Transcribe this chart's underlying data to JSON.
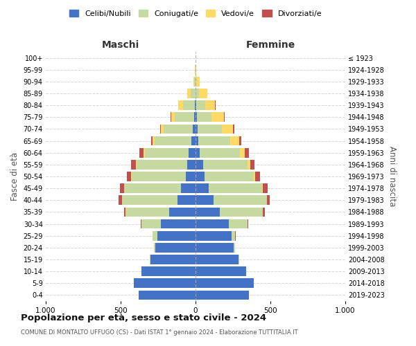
{
  "age_groups": [
    "0-4",
    "5-9",
    "10-14",
    "15-19",
    "20-24",
    "25-29",
    "30-34",
    "35-39",
    "40-44",
    "45-49",
    "50-54",
    "55-59",
    "60-64",
    "65-69",
    "70-74",
    "75-79",
    "80-84",
    "85-89",
    "90-94",
    "95-99",
    "100+"
  ],
  "birth_years": [
    "2019-2023",
    "2014-2018",
    "2009-2013",
    "2004-2008",
    "1999-2003",
    "1994-1998",
    "1989-1993",
    "1984-1988",
    "1979-1983",
    "1974-1978",
    "1969-1973",
    "1964-1968",
    "1959-1963",
    "1954-1958",
    "1949-1953",
    "1944-1948",
    "1939-1943",
    "1934-1938",
    "1929-1933",
    "1924-1928",
    "≤ 1923"
  ],
  "males": {
    "celibi": [
      380,
      410,
      360,
      300,
      270,
      255,
      230,
      175,
      120,
      95,
      65,
      55,
      45,
      30,
      20,
      10,
      5,
      2,
      0,
      0,
      0
    ],
    "coniugati": [
      0,
      0,
      0,
      5,
      10,
      30,
      130,
      290,
      370,
      380,
      360,
      340,
      295,
      245,
      195,
      130,
      80,
      30,
      8,
      2,
      0
    ],
    "vedovi": [
      0,
      0,
      0,
      0,
      0,
      0,
      0,
      1,
      2,
      3,
      4,
      5,
      8,
      12,
      15,
      20,
      30,
      25,
      8,
      2,
      0
    ],
    "divorziati": [
      0,
      0,
      0,
      0,
      0,
      2,
      5,
      10,
      22,
      25,
      28,
      30,
      25,
      10,
      8,
      5,
      3,
      0,
      0,
      0,
      0
    ]
  },
  "females": {
    "nubili": [
      355,
      390,
      340,
      285,
      255,
      240,
      220,
      160,
      120,
      90,
      60,
      50,
      30,
      20,
      15,
      8,
      5,
      2,
      0,
      0,
      0
    ],
    "coniugate": [
      0,
      0,
      0,
      5,
      10,
      25,
      125,
      290,
      355,
      355,
      330,
      295,
      265,
      210,
      160,
      100,
      60,
      20,
      5,
      0,
      0
    ],
    "vedove": [
      0,
      0,
      0,
      0,
      0,
      0,
      0,
      1,
      2,
      5,
      10,
      20,
      35,
      60,
      75,
      80,
      65,
      55,
      25,
      5,
      0
    ],
    "divorziate": [
      0,
      0,
      0,
      0,
      0,
      2,
      5,
      12,
      18,
      30,
      32,
      30,
      25,
      15,
      10,
      5,
      3,
      2,
      0,
      0,
      0
    ]
  },
  "colors": {
    "celibi": "#4472C4",
    "coniugati": "#C5D9A0",
    "vedovi": "#FFD966",
    "divorziati": "#C0504D"
  },
  "title": "Popolazione per età, sesso e stato civile - 2024",
  "subtitle": "COMUNE DI MONTALTO UFFUGO (CS) - Dati ISTAT 1° gennaio 2024 - Elaborazione TUTTITALIA.IT",
  "xlabel_left": "Maschi",
  "xlabel_right": "Femmine",
  "ylabel_left": "Fasce di età",
  "ylabel_right": "Anni di nascita",
  "xlim": 1000,
  "legend_labels": [
    "Celibi/Nubili",
    "Coniugati/e",
    "Vedovi/e",
    "Divorziati/e"
  ],
  "background_color": "#ffffff"
}
